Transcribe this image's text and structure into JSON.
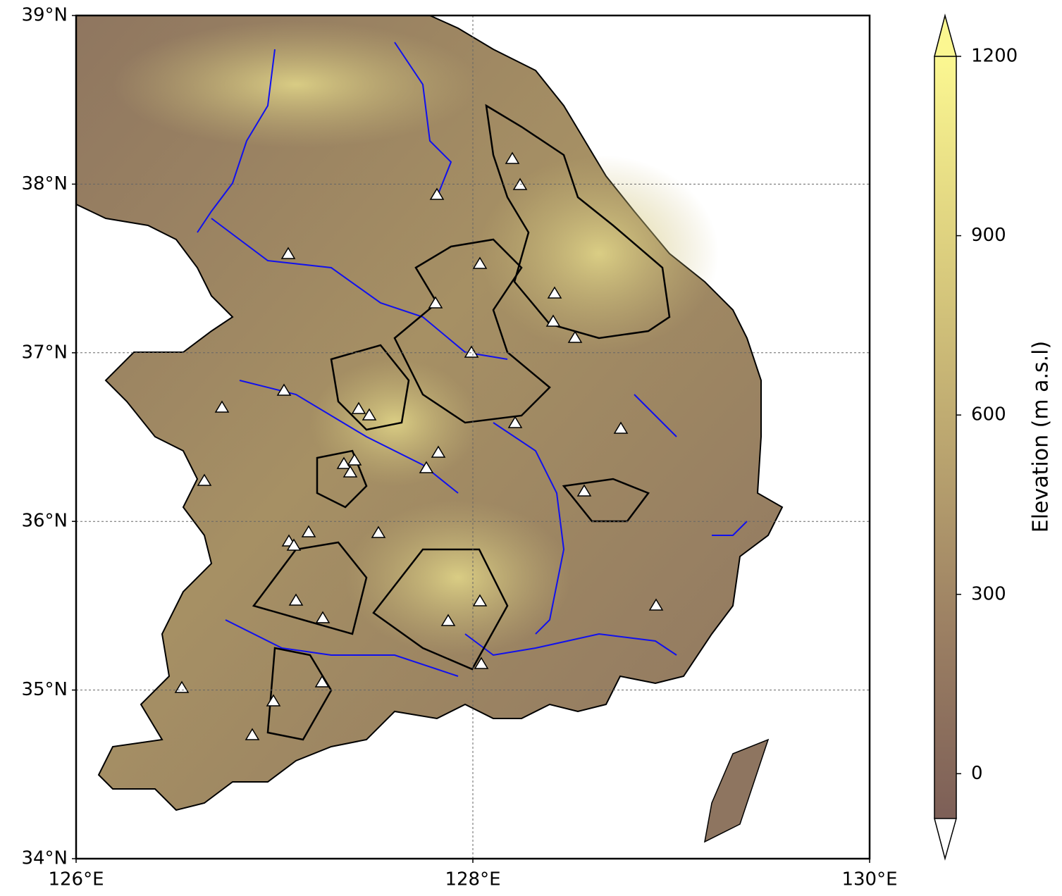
{
  "map": {
    "xlim": [
      126,
      130
    ],
    "ylim": [
      34,
      39
    ],
    "xticks": [
      {
        "value": 126,
        "label": "126°E"
      },
      {
        "value": 128,
        "label": "128°E"
      },
      {
        "value": 130,
        "label": "130°E"
      }
    ],
    "yticks": [
      {
        "value": 34,
        "label": "34°N"
      },
      {
        "value": 35,
        "label": "35°N"
      },
      {
        "value": 36,
        "label": "36°N"
      },
      {
        "value": 37,
        "label": "37°N"
      },
      {
        "value": 38,
        "label": "38°N"
      },
      {
        "value": 39,
        "label": "39°N"
      }
    ],
    "grid": true
  },
  "colorbar": {
    "label": "Elevation (m a.s.l)",
    "clim": [
      -75,
      1200
    ],
    "ticks": [
      0,
      300,
      600,
      900,
      1200
    ],
    "colors": [
      "#7d5f57",
      "#9c8063",
      "#bca770",
      "#ddd07f",
      "#fbf791"
    ]
  }
}
